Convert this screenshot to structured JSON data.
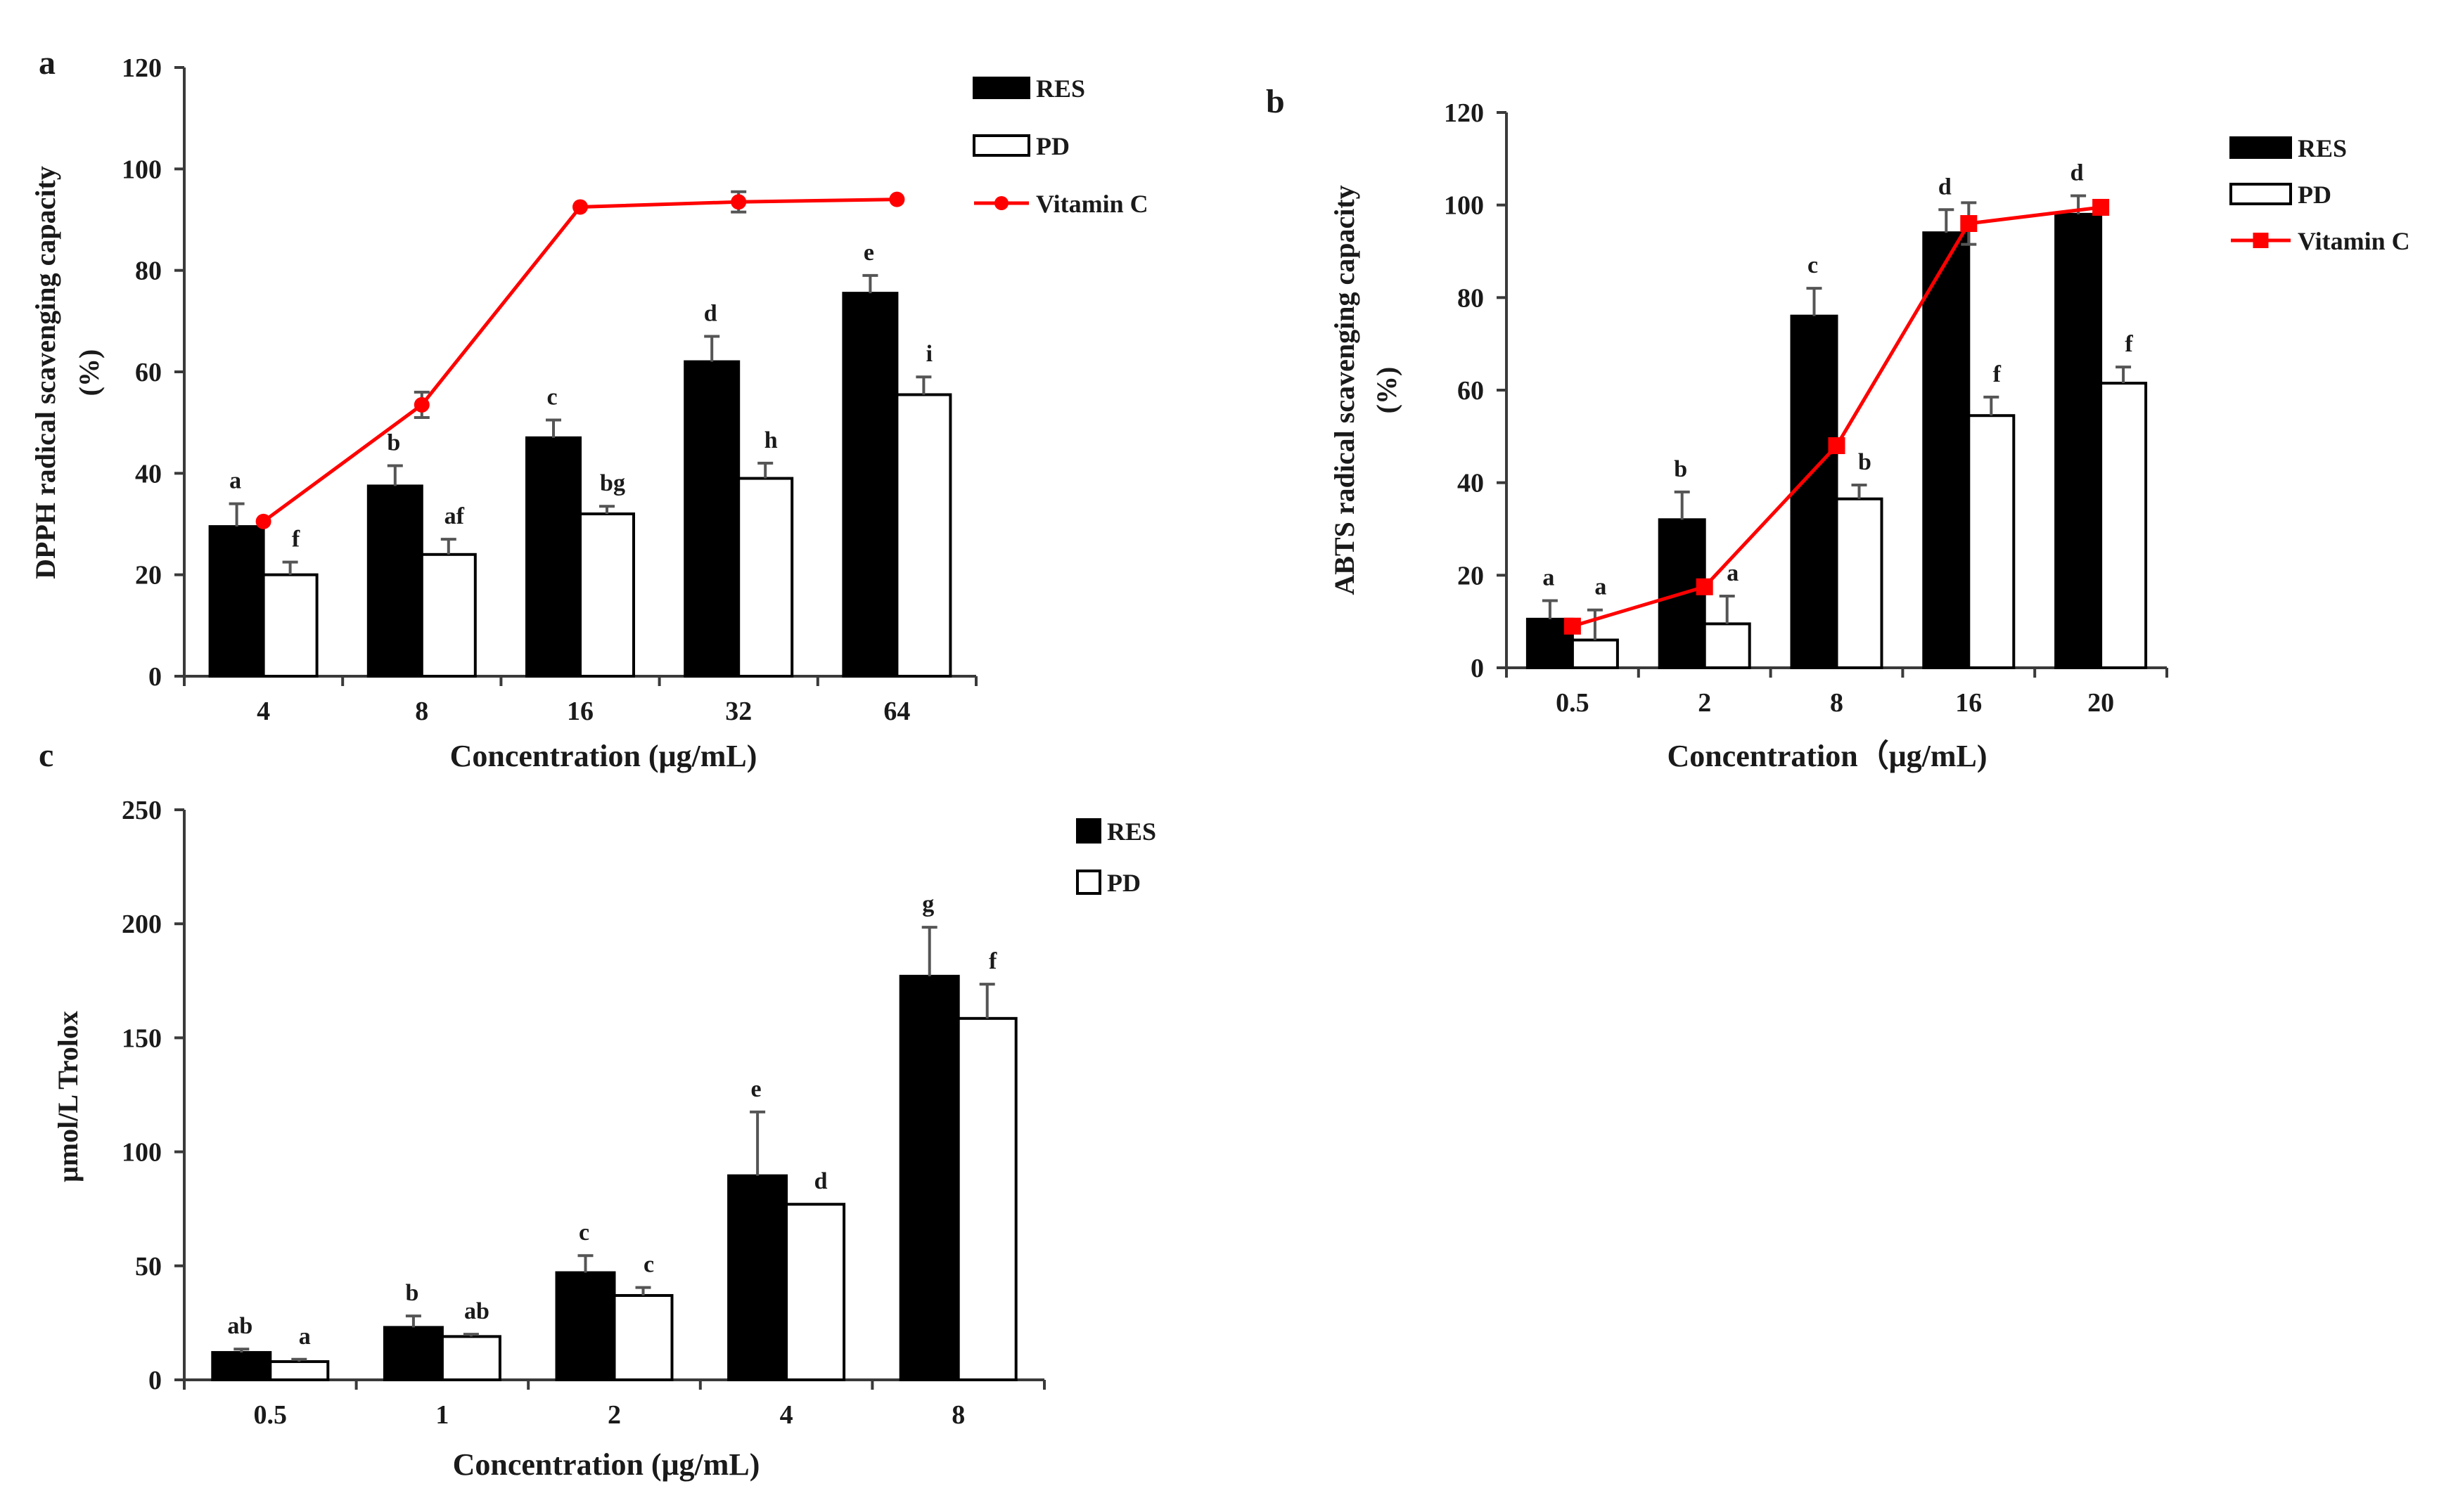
{
  "colors": {
    "res": "#000000",
    "pd": "#ffffff",
    "vitc": "#ff0000",
    "axis": "#3a3a3a",
    "err": "#555555"
  },
  "chart_data": [
    {
      "panel": "a",
      "type": "bar",
      "title": "",
      "xlabel": "Concentration (μg/mL)",
      "ylabel": "DPPH  radical scavenging capacity",
      "ylabel2": "(%)",
      "ylim": [
        0,
        120
      ],
      "yticks": [
        "0",
        "20",
        "40",
        "60",
        "80",
        "100",
        "120"
      ],
      "categories": [
        "4",
        "8",
        "16",
        "32",
        "64"
      ],
      "legend": [
        "RES",
        "PD",
        "Vitamin C"
      ],
      "legend_position": "top-right",
      "series": [
        {
          "name": "RES",
          "values": [
            29.5,
            37.5,
            47,
            62,
            75.5
          ],
          "errors": [
            4.5,
            4,
            3.5,
            5,
            3.5
          ],
          "labels": [
            "a",
            "b",
            "c",
            "d",
            "e"
          ]
        },
        {
          "name": "PD",
          "values": [
            20,
            24,
            32,
            39,
            55.5
          ],
          "errors": [
            2.5,
            3,
            1.5,
            3,
            3.5
          ],
          "labels": [
            "f",
            "af",
            "bg",
            "h",
            "i"
          ]
        }
      ],
      "line": {
        "name": "Vitamin C",
        "values": [
          30.5,
          53.5,
          92.5,
          93.5,
          94
        ],
        "errors": [
          0,
          2.5,
          0,
          2,
          0
        ],
        "marker": "circle"
      }
    },
    {
      "panel": "b",
      "type": "bar",
      "title": "",
      "xlabel": "Concentration（μg/mL)",
      "ylabel": "ABTS radical scavenging capacity",
      "ylabel2": "(%)",
      "ylim": [
        0,
        120
      ],
      "yticks": [
        "0",
        "20",
        "40",
        "60",
        "80",
        "100",
        "120"
      ],
      "categories": [
        "0.5",
        "2",
        "8",
        "16",
        "20"
      ],
      "legend": [
        "RES",
        "PD",
        "Vitamin C"
      ],
      "legend_position": "top-right",
      "series": [
        {
          "name": "RES",
          "values": [
            10.5,
            32,
            76,
            94,
            98
          ],
          "errors": [
            4,
            6,
            6,
            5,
            4
          ],
          "labels": [
            "a",
            "b",
            "c",
            "d",
            "d"
          ]
        },
        {
          "name": "PD",
          "values": [
            6,
            9.5,
            36.5,
            54.5,
            61.5
          ],
          "errors": [
            6.5,
            6,
            3,
            4,
            3.5
          ],
          "labels": [
            "a",
            "a",
            "b",
            "f",
            "f"
          ]
        }
      ],
      "line": {
        "name": "Vitamin C",
        "values": [
          9,
          17.5,
          48,
          96,
          99.5
        ],
        "errors": [
          0,
          0,
          0,
          4.5,
          0
        ],
        "marker": "square"
      }
    },
    {
      "panel": "c",
      "type": "bar",
      "title": "",
      "xlabel": "Concentration (μg/mL)",
      "ylabel": "μmol/L Trolox",
      "ylabel2": "",
      "ylim": [
        0,
        250
      ],
      "yticks": [
        "0",
        "50",
        "100",
        "150",
        "200",
        "250"
      ],
      "categories": [
        "0.5",
        "1",
        "2",
        "4",
        "8"
      ],
      "legend": [
        "RES",
        "PD"
      ],
      "legend_position": "top-right",
      "series": [
        {
          "name": "RES",
          "values": [
            12,
            23,
            47,
            89.5,
            177
          ],
          "errors": [
            1.5,
            5,
            7.5,
            28,
            21.5
          ],
          "labels": [
            "ab",
            "b",
            "c",
            "e",
            "g"
          ]
        },
        {
          "name": "PD",
          "values": [
            8,
            19,
            37,
            77,
            158.5
          ],
          "errors": [
            1,
            1,
            3.5,
            0,
            15
          ],
          "labels": [
            "a",
            "ab",
            "c",
            "d",
            "f"
          ]
        }
      ],
      "line": null
    }
  ]
}
